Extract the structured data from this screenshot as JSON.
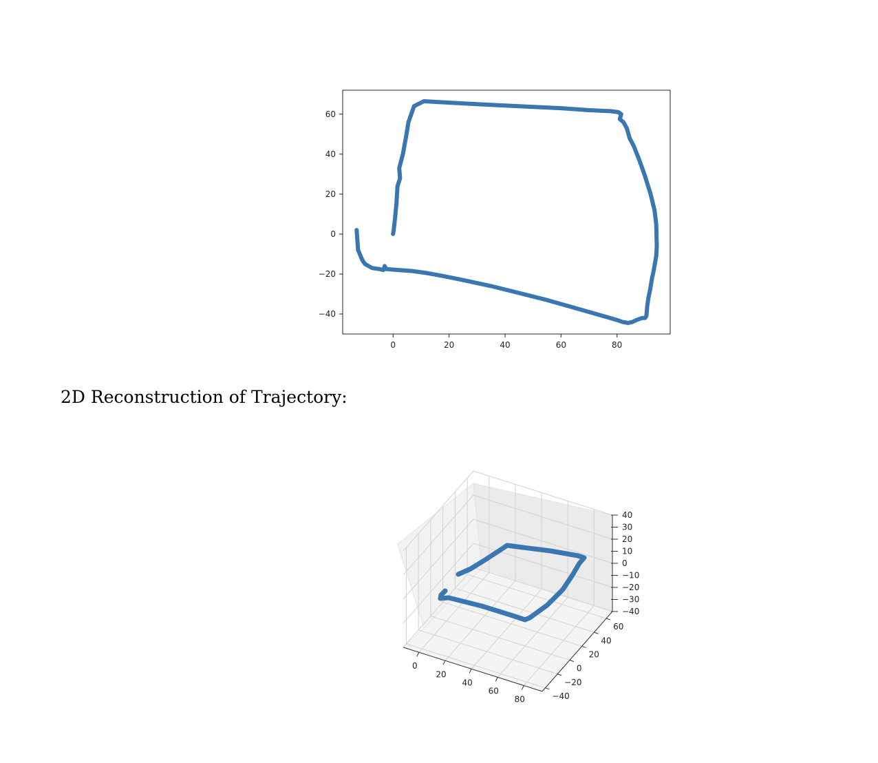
{
  "caption": "2D Reconstruction of Trajectory:",
  "chart_data": [
    {
      "type": "line",
      "title": "",
      "xlabel": "",
      "ylabel": "",
      "xlim": [
        -18,
        99
      ],
      "ylim": [
        -50,
        72
      ],
      "xticks": [
        0,
        20,
        40,
        60,
        80
      ],
      "yticks": [
        -40,
        -20,
        0,
        20,
        40,
        60
      ],
      "xtick_labels": [
        "0",
        "20",
        "40",
        "60",
        "80"
      ],
      "ytick_labels": [
        "−40",
        "−20",
        "0",
        "20",
        "40",
        "60"
      ],
      "grid": false,
      "color": "#3a76b0",
      "series": [
        {
          "x": [
            0,
            0.3,
            0.7,
            1.2,
            1.6,
            2.5,
            2.2,
            3.5,
            4.8,
            5.5,
            7.5,
            11,
            17,
            30,
            45,
            60,
            70,
            78,
            80.5,
            81.5,
            81.0,
            82.3,
            83.5,
            84.5,
            86,
            88,
            90,
            92,
            93.4,
            94.0,
            94.2,
            94.0,
            93.0,
            92.5,
            91.8,
            91.2,
            90.8,
            90.5,
            90.0,
            89.0,
            88.0,
            87.0,
            85.5,
            84.0,
            82.0,
            80,
            75,
            65,
            55,
            45,
            35,
            25,
            18,
            12,
            7,
            2,
            -2.5,
            -3.0,
            -3.2,
            -3.5,
            -5.0,
            -7.5,
            -10.0,
            -11.0,
            -12.5,
            -13.0
          ],
          "y": [
            0,
            3,
            8,
            15,
            24,
            28,
            33,
            40,
            50,
            56,
            64,
            66.5,
            66,
            65,
            64,
            63,
            62,
            61.5,
            61,
            60,
            57.5,
            56,
            53,
            48,
            44,
            37,
            29,
            20,
            12,
            5,
            -6,
            -11,
            -19,
            -22,
            -28,
            -32,
            -36,
            -41,
            -42,
            -42,
            -42.5,
            -43,
            -44,
            -44.5,
            -44,
            -43,
            -41,
            -37,
            -33,
            -29.5,
            -26,
            -23,
            -21,
            -19.5,
            -18.5,
            -18,
            -17.5,
            -16,
            -17,
            -18,
            -17.5,
            -17,
            -15,
            -13,
            -8,
            2
          ]
        }
      ]
    },
    {
      "type": "line",
      "title": "",
      "projection": "3d",
      "xticks": [
        0,
        20,
        40,
        60,
        80
      ],
      "yticks": [
        -40,
        -20,
        0,
        20,
        40,
        60
      ],
      "zticks": [
        -40,
        -30,
        -20,
        -10,
        0,
        10,
        20,
        30,
        40
      ],
      "xtick_labels": [
        "0",
        "20",
        "40",
        "60",
        "80"
      ],
      "ytick_labels": [
        "−40",
        "−20",
        "0",
        "20",
        "40",
        "60"
      ],
      "ztick_labels": [
        "−40",
        "−30",
        "−20",
        "−10",
        "0",
        "10",
        "20",
        "30",
        "40"
      ],
      "grid": true,
      "color": "#3a76b0",
      "series": [
        {
          "x": [
            -12,
            5,
            10,
            20,
            30,
            40,
            50,
            60,
            70,
            80,
            85,
            87,
            88,
            89,
            90,
            92,
            94,
            94,
            92,
            90,
            88,
            85,
            80,
            70,
            60,
            50,
            40,
            30,
            20,
            10,
            5,
            0
          ],
          "y": [
            0,
            -16,
            -16,
            -17,
            -20,
            -24,
            -28,
            -33,
            -38,
            -42,
            -44,
            -43,
            -38,
            -30,
            -20,
            0,
            20,
            40,
            52,
            58,
            60,
            61,
            61,
            62,
            63,
            64,
            65,
            66,
            66,
            66,
            64,
            0
          ],
          "z": [
            0,
            0,
            0,
            0,
            0,
            0,
            0,
            0,
            0,
            0,
            0,
            0,
            0,
            0,
            0,
            0,
            0,
            0,
            0,
            0,
            0,
            0,
            0,
            0,
            0,
            0,
            0,
            0,
            0,
            0,
            0,
            0
          ]
        }
      ]
    }
  ]
}
